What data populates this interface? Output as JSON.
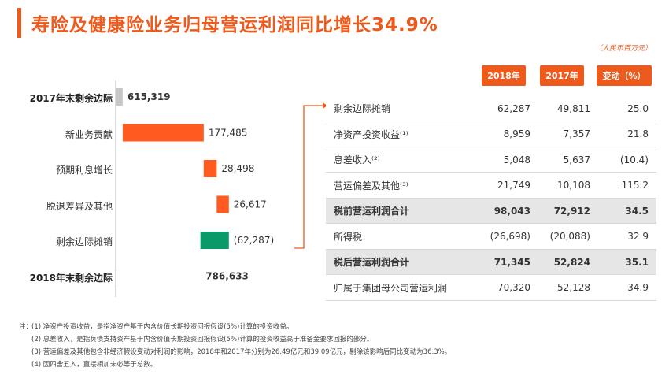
{
  "title": "寿险及健康险业务归母营运利润同比增长34.9%",
  "unit_note": "（人民币百万元）",
  "colors": {
    "accent": "#ee5a1c",
    "increase": "#ff5a1f",
    "decrease": "#0a9a6a",
    "total_start": "#c8c8c8",
    "header_row_bg": "#e6e6e6"
  },
  "chart_data": {
    "type": "waterfall",
    "title": "",
    "categories": [
      "2017年末剩余边际",
      "新业务贡献",
      "预期利息增长",
      "脱退差异及其他",
      "剩余边际摊销",
      "2018年末剩余边际"
    ],
    "values": [
      615319,
      177485,
      28498,
      26617,
      -62287,
      786633
    ],
    "value_labels": [
      "615,319",
      "177,485",
      "28,498",
      "26,617",
      "(62,287)",
      "786,633"
    ],
    "kinds": [
      "total",
      "increase",
      "increase",
      "increase",
      "decrease",
      "total"
    ],
    "bold_categories": [
      true,
      false,
      false,
      false,
      false,
      true
    ]
  },
  "table": {
    "headers": [
      "2018年",
      "2017年",
      "变动（%）"
    ],
    "rows": [
      {
        "label": "剩余边际摊销",
        "y2018": "62,287",
        "y2017": "49,811",
        "chg": "25.0",
        "bold": false
      },
      {
        "label": "净资产投资收益⁽¹⁾",
        "y2018": "8,959",
        "y2017": "7,357",
        "chg": "21.8",
        "bold": false
      },
      {
        "label": "息差收入⁽²⁾",
        "y2018": "5,048",
        "y2017": "5,637",
        "chg": "(10.4)",
        "bold": false
      },
      {
        "label": "营运偏差及其他⁽³⁾",
        "y2018": "21,749",
        "y2017": "10,108",
        "chg": "115.2",
        "bold": false
      },
      {
        "label": "税前营运利润合计",
        "y2018": "98,043",
        "y2017": "72,912",
        "chg": "34.5",
        "bold": true
      },
      {
        "label": "所得税",
        "y2018": "(26,698)",
        "y2017": "(20,088)",
        "chg": "32.9",
        "bold": false
      },
      {
        "label": "税后营运利润合计",
        "y2018": "71,345",
        "y2017": "52,824",
        "chg": "35.1",
        "bold": true
      },
      {
        "label": "归属于集团母公司营运利润",
        "y2018": "70,320",
        "y2017": "52,128",
        "chg": "34.9",
        "bold": false
      }
    ]
  },
  "footnotes": {
    "prefix": "注：",
    "items": [
      "(1) 净资产投资收益，是指净资产基于内含价值长期投资回报假设(5%)计算的投资收益。",
      "(2) 息差收入，是指负债支持资产基于内含价值长期投资回报假设(5%)计算的投资收益高于准备金要求回报的部分。",
      "(3) 营运偏差及其他包含非经济假设变动对利润的影响，2018年和2017年分别为26.49亿元和39.09亿元，剔除该影响后同比变动为36.3%。",
      "(4) 因四舍五入，直接相加未必等于总数。"
    ]
  }
}
